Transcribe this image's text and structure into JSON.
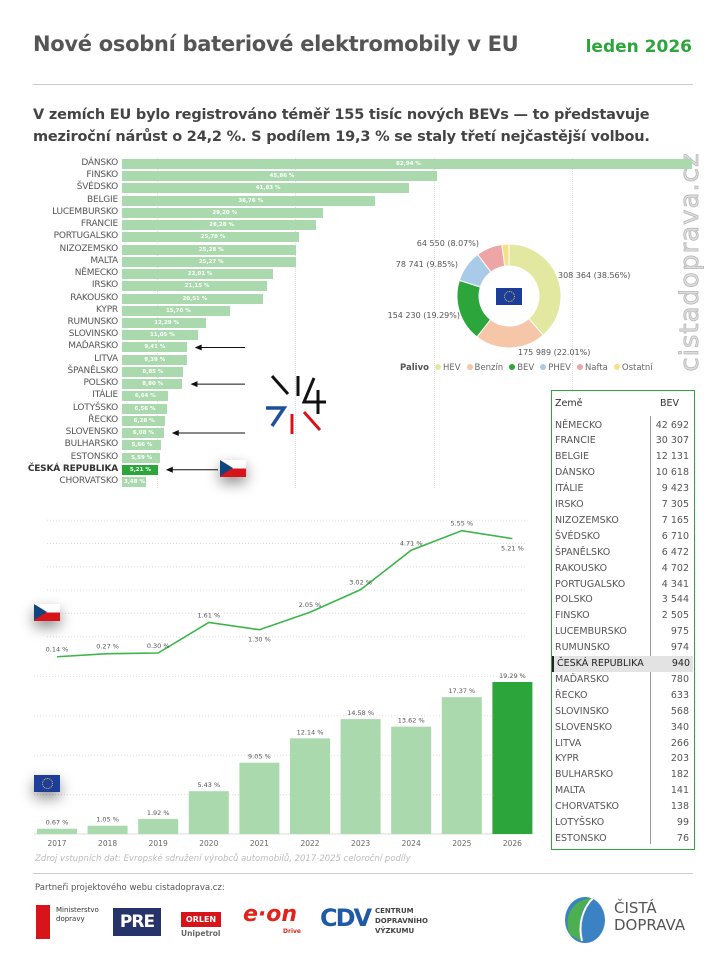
{
  "header": {
    "title": "Nové osobní bateriové elektromobily v EU",
    "date": "leden 2026",
    "subtitle": "V zemích EU bylo registrováno téměř 155 tisíc nových BEVs — to představuje meziroční nárůst o 24,2 %. S podílem 19,3 % se staly třetí nejčastější volbou."
  },
  "watermark": "cistadoprava.cz",
  "colors": {
    "accent": "#2ca53a",
    "bar_light": "#a9d9ac",
    "hev": "#e3e8a0",
    "benzin": "#f5c6a8",
    "bev": "#2ca53a",
    "phev": "#a9cbe8",
    "nafta": "#eda5a5",
    "ostatni": "#f7e08a"
  },
  "chart_data": [
    {
      "type": "bar",
      "orientation": "horizontal",
      "categories": [
        "DÁNSKO",
        "FINSKO",
        "ŠVÉDSKO",
        "BELGIE",
        "LUCEMBURSKO",
        "FRANCIE",
        "PORTUGALSKO",
        "NIZOZEMSKO",
        "MALTA",
        "NĚMECKO",
        "IRSKO",
        "RAKOUSKO",
        "KYPR",
        "RUMUNSKO",
        "SLOVINSKO",
        "MAĎARSKO",
        "LITVA",
        "ŠPANĚLSKO",
        "POLSKO",
        "ITÁLIE",
        "LOTYŠSKO",
        "ŘECKO",
        "SLOVENSKO",
        "BULHARSKO",
        "ESTONSKO",
        "ČESKÁ REPUBLIKA",
        "CHORVATSKO"
      ],
      "values": [
        82.94,
        45.86,
        41.83,
        36.76,
        29.2,
        28.28,
        25.78,
        25.28,
        25.27,
        22.01,
        21.15,
        20.51,
        15.7,
        12.29,
        11.05,
        9.41,
        9.39,
        8.85,
        8.8,
        6.64,
        6.56,
        6.28,
        6.08,
        5.66,
        5.59,
        5.21,
        3.48
      ],
      "labels": [
        "82,94 %",
        "45,86 %",
        "41,83 %",
        "36,76 %",
        "29,20 %",
        "28,28 %",
        "25,78 %",
        "25,28 %",
        "25,27 %",
        "22,01 %",
        "21,15 %",
        "20,51 %",
        "15,70 %",
        "12,29 %",
        "11,05 %",
        "9,41 %",
        "9,39 %",
        "8,85 %",
        "8,80 %",
        "6,64 %",
        "6,56 %",
        "6,28 %",
        "6,08 %",
        "5,66 %",
        "5,59 %",
        "5,21 %",
        "3,48 %"
      ],
      "highlight": "ČESKÁ REPUBLIKA",
      "arrows": [
        "MAĎARSKO",
        "POLSKO",
        "SLOVENSKO",
        "ČESKÁ REPUBLIKA"
      ]
    },
    {
      "type": "pie",
      "donut": true,
      "legend_title": "Palivo",
      "legend_position": "bottom",
      "slices": [
        {
          "name": "HEV",
          "value": 308364,
          "label": "308 364 (38.56%)"
        },
        {
          "name": "Benzín",
          "value": 175989,
          "label": "175 989 (22.01%)"
        },
        {
          "name": "BEV",
          "value": 154230,
          "label": "154 230 (19.29%)"
        },
        {
          "name": "PHEV",
          "value": 78741,
          "label": "78 741 (9.85%)"
        },
        {
          "name": "Nafta",
          "value": 64550,
          "label": "64 550 (8.07%)"
        },
        {
          "name": "Ostatní",
          "value": 17760,
          "label": ""
        }
      ]
    },
    {
      "type": "line",
      "x": [
        "2017",
        "2018",
        "2019",
        "2020",
        "2021",
        "2022",
        "2023",
        "2024",
        "2025",
        "2026"
      ],
      "values": [
        0.14,
        0.27,
        0.3,
        1.61,
        1.3,
        2.05,
        3.02,
        4.71,
        5.55,
        5.21
      ],
      "labels": [
        "0.14 %",
        "0.27 %",
        "0.30 %",
        "1.61 %",
        "1.30 %",
        "2.05 %",
        "3.02 %",
        "4.71 %",
        "5.55 %",
        "5.21 %"
      ],
      "grid": true
    },
    {
      "type": "bar",
      "categories": [
        "2017",
        "2018",
        "2019",
        "2020",
        "2021",
        "2022",
        "2023",
        "2024",
        "2025",
        "2026"
      ],
      "values": [
        0.67,
        1.05,
        1.92,
        5.43,
        9.05,
        12.14,
        14.58,
        13.62,
        17.37,
        19.29
      ],
      "labels": [
        "0.67 %",
        "1.05 %",
        "1.92 %",
        "5.43 %",
        "9.05 %",
        "12.14 %",
        "14.58 %",
        "13.62 %",
        "17.37 %",
        "19.29 %"
      ],
      "highlight": "2026",
      "grid": true
    }
  ],
  "table": {
    "headers": [
      "Země",
      "BEV"
    ],
    "rows": [
      [
        "NĚMECKO",
        "42 692"
      ],
      [
        "FRANCIE",
        "30 307"
      ],
      [
        "BELGIE",
        "12 131"
      ],
      [
        "DÁNSKO",
        "10 618"
      ],
      [
        "ITÁLIE",
        "9 423"
      ],
      [
        "IRSKO",
        "7 305"
      ],
      [
        "NIZOZEMSKO",
        "7 165"
      ],
      [
        "ŠVÉDSKO",
        "6 710"
      ],
      [
        "ŠPANĚLSKO",
        "6 472"
      ],
      [
        "RAKOUSKO",
        "4 702"
      ],
      [
        "PORTUGALSKO",
        "4 341"
      ],
      [
        "POLSKO",
        "3 544"
      ],
      [
        "FINSKO",
        "2 505"
      ],
      [
        "LUCEMBURSKO",
        "975"
      ],
      [
        "RUMUNSKO",
        "974"
      ],
      [
        "ČESKÁ REPUBLIKA",
        "940"
      ],
      [
        "MAĎARSKO",
        "780"
      ],
      [
        "ŘECKO",
        "633"
      ],
      [
        "SLOVINSKO",
        "568"
      ],
      [
        "SLOVENSKO",
        "340"
      ],
      [
        "LITVA",
        "266"
      ],
      [
        "KYPR",
        "203"
      ],
      [
        "BULHARSKO",
        "182"
      ],
      [
        "MALTA",
        "141"
      ],
      [
        "CHORVATSKO",
        "138"
      ],
      [
        "LOTYŠSKO",
        "99"
      ],
      [
        "ESTONSKO",
        "76"
      ]
    ],
    "highlight": "ČESKÁ REPUBLIKA"
  },
  "footer": {
    "source": "Zdroj vstupních dat: Evropské sdružení výrobců automobilů, 2017-2025 celoroční podíly",
    "partners_label": "Partneři projektového webu cistadoprava.cz:",
    "logos": {
      "mdcr": "Ministerstvo dopravy",
      "pre": "PRE",
      "orlen": "ORLEN",
      "orlen_sub": "Unipetrol",
      "eon": "e·on",
      "eon_sub": "Drive",
      "cdv": "CDV",
      "cdv_text": "CENTRUM DOPRAVNÍHO VÝZKUMU",
      "cista1": "ČISTÁ",
      "cista2": "DOPRAVA"
    }
  }
}
